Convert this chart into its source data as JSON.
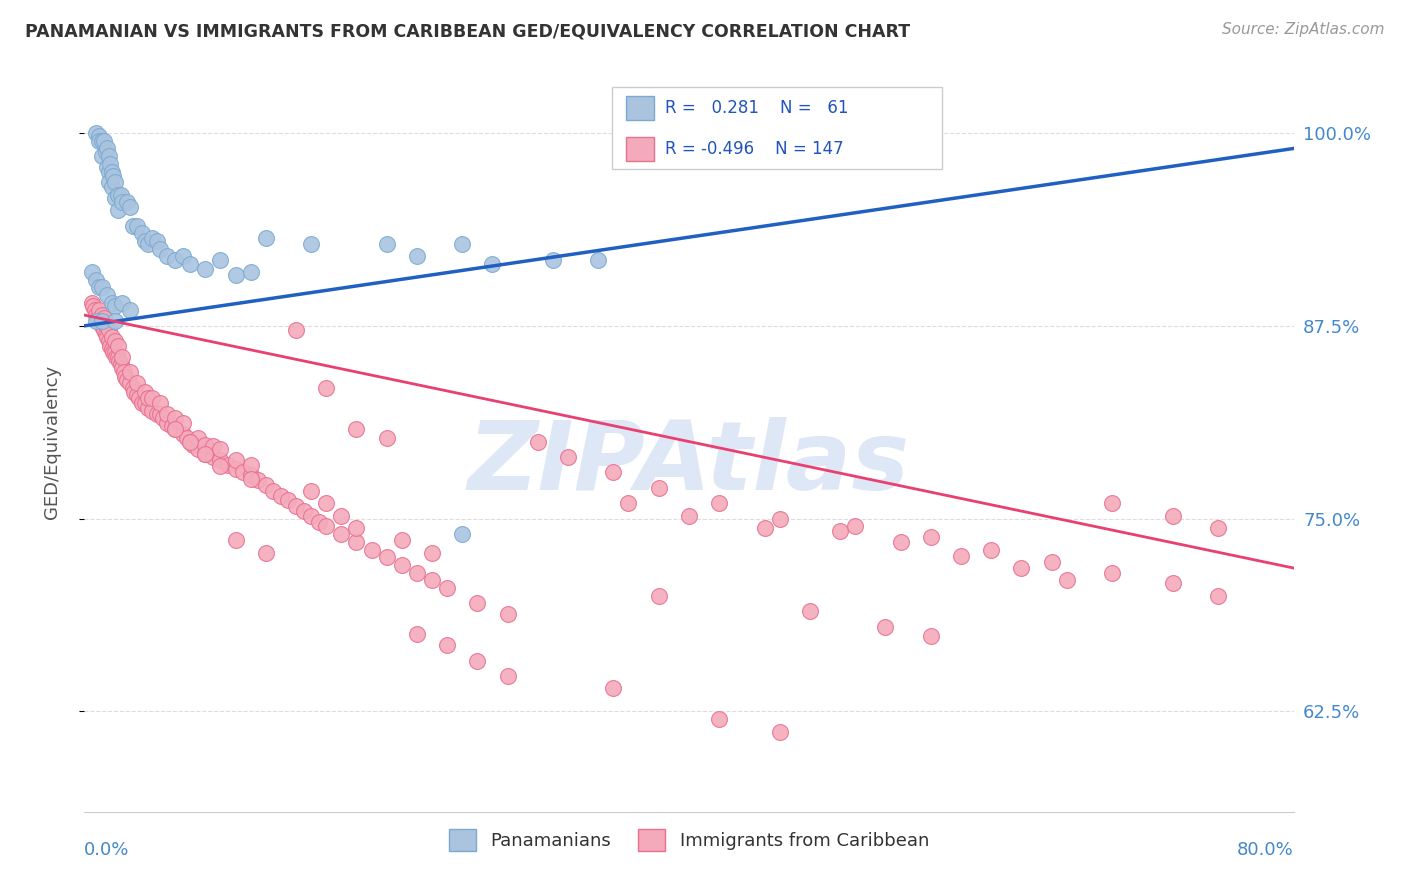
{
  "title": "PANAMANIAN VS IMMIGRANTS FROM CARIBBEAN GED/EQUIVALENCY CORRELATION CHART",
  "source": "Source: ZipAtlas.com",
  "ylabel": "GED/Equivalency",
  "ytick_labels": [
    "100.0%",
    "87.5%",
    "75.0%",
    "62.5%"
  ],
  "ytick_values": [
    1.0,
    0.875,
    0.75,
    0.625
  ],
  "legend_label_blue": "Panamanians",
  "legend_label_pink": "Immigrants from Caribbean",
  "blue_color": "#aac4e0",
  "pink_color": "#f4aabb",
  "blue_edge": "#7baad0",
  "pink_edge": "#e87090",
  "trend_blue_color": "#2060c0",
  "trend_pink_color": "#e84070",
  "watermark_color": "#c8d8f0",
  "background_color": "#ffffff",
  "grid_color": "#dddddd",
  "xlim": [
    0.0,
    0.8
  ],
  "ylim": [
    0.56,
    1.04
  ],
  "blue_scatter_x": [
    0.008,
    0.01,
    0.01,
    0.012,
    0.012,
    0.013,
    0.014,
    0.015,
    0.015,
    0.016,
    0.016,
    0.016,
    0.017,
    0.018,
    0.018,
    0.019,
    0.02,
    0.02,
    0.022,
    0.022,
    0.024,
    0.025,
    0.028,
    0.03,
    0.032,
    0.035,
    0.038,
    0.04,
    0.042,
    0.045,
    0.048,
    0.05,
    0.055,
    0.06,
    0.065,
    0.07,
    0.08,
    0.09,
    0.1,
    0.11,
    0.12,
    0.15,
    0.2,
    0.22,
    0.25,
    0.27,
    0.31,
    0.34,
    0.005,
    0.008,
    0.01,
    0.012,
    0.015,
    0.018,
    0.02,
    0.025,
    0.03,
    0.008,
    0.012,
    0.02,
    0.25
  ],
  "blue_scatter_y": [
    1.0,
    0.998,
    0.995,
    0.995,
    0.985,
    0.995,
    0.988,
    0.99,
    0.978,
    0.985,
    0.975,
    0.968,
    0.98,
    0.975,
    0.965,
    0.972,
    0.968,
    0.958,
    0.96,
    0.95,
    0.96,
    0.955,
    0.955,
    0.952,
    0.94,
    0.94,
    0.935,
    0.93,
    0.928,
    0.932,
    0.93,
    0.925,
    0.92,
    0.918,
    0.92,
    0.915,
    0.912,
    0.918,
    0.908,
    0.91,
    0.932,
    0.928,
    0.928,
    0.92,
    0.928,
    0.915,
    0.918,
    0.918,
    0.91,
    0.905,
    0.9,
    0.9,
    0.895,
    0.89,
    0.888,
    0.89,
    0.885,
    0.878,
    0.878,
    0.878,
    0.74
  ],
  "pink_scatter_x": [
    0.005,
    0.006,
    0.007,
    0.008,
    0.009,
    0.01,
    0.01,
    0.012,
    0.012,
    0.013,
    0.013,
    0.014,
    0.015,
    0.015,
    0.016,
    0.016,
    0.017,
    0.018,
    0.018,
    0.019,
    0.02,
    0.02,
    0.021,
    0.022,
    0.022,
    0.023,
    0.024,
    0.025,
    0.025,
    0.026,
    0.027,
    0.028,
    0.03,
    0.03,
    0.032,
    0.033,
    0.035,
    0.035,
    0.036,
    0.038,
    0.04,
    0.04,
    0.042,
    0.042,
    0.045,
    0.045,
    0.048,
    0.05,
    0.05,
    0.052,
    0.055,
    0.055,
    0.058,
    0.06,
    0.06,
    0.065,
    0.065,
    0.068,
    0.07,
    0.072,
    0.075,
    0.075,
    0.08,
    0.08,
    0.085,
    0.085,
    0.09,
    0.09,
    0.095,
    0.1,
    0.1,
    0.105,
    0.11,
    0.11,
    0.115,
    0.12,
    0.125,
    0.13,
    0.135,
    0.14,
    0.145,
    0.15,
    0.155,
    0.16,
    0.17,
    0.18,
    0.19,
    0.2,
    0.21,
    0.22,
    0.23,
    0.24,
    0.26,
    0.28,
    0.3,
    0.32,
    0.35,
    0.38,
    0.42,
    0.46,
    0.5,
    0.54,
    0.58,
    0.62,
    0.65,
    0.68,
    0.72,
    0.75,
    0.1,
    0.12,
    0.14,
    0.16,
    0.18,
    0.2,
    0.22,
    0.24,
    0.26,
    0.28,
    0.35,
    0.38,
    0.48,
    0.51,
    0.56,
    0.6,
    0.64,
    0.68,
    0.72,
    0.75,
    0.06,
    0.07,
    0.08,
    0.09,
    0.11,
    0.15,
    0.16,
    0.17,
    0.18,
    0.21,
    0.23,
    0.36,
    0.4,
    0.45,
    0.53,
    0.56,
    0.42,
    0.46
  ],
  "pink_scatter_y": [
    0.89,
    0.888,
    0.885,
    0.882,
    0.88,
    0.878,
    0.885,
    0.875,
    0.882,
    0.872,
    0.88,
    0.87,
    0.868,
    0.875,
    0.865,
    0.872,
    0.862,
    0.86,
    0.868,
    0.858,
    0.858,
    0.865,
    0.855,
    0.855,
    0.862,
    0.852,
    0.85,
    0.848,
    0.855,
    0.845,
    0.842,
    0.84,
    0.838,
    0.845,
    0.835,
    0.832,
    0.83,
    0.838,
    0.828,
    0.825,
    0.825,
    0.832,
    0.822,
    0.828,
    0.82,
    0.828,
    0.818,
    0.818,
    0.825,
    0.815,
    0.812,
    0.818,
    0.81,
    0.808,
    0.815,
    0.805,
    0.812,
    0.802,
    0.8,
    0.798,
    0.795,
    0.802,
    0.792,
    0.798,
    0.79,
    0.797,
    0.788,
    0.795,
    0.785,
    0.782,
    0.788,
    0.78,
    0.778,
    0.785,
    0.775,
    0.772,
    0.768,
    0.765,
    0.762,
    0.758,
    0.755,
    0.752,
    0.748,
    0.745,
    0.74,
    0.735,
    0.73,
    0.725,
    0.72,
    0.715,
    0.71,
    0.705,
    0.695,
    0.688,
    0.8,
    0.79,
    0.78,
    0.77,
    0.76,
    0.75,
    0.742,
    0.735,
    0.726,
    0.718,
    0.71,
    0.76,
    0.752,
    0.744,
    0.736,
    0.728,
    0.872,
    0.835,
    0.808,
    0.802,
    0.675,
    0.668,
    0.658,
    0.648,
    0.64,
    0.7,
    0.69,
    0.745,
    0.738,
    0.73,
    0.722,
    0.715,
    0.708,
    0.7,
    0.808,
    0.8,
    0.792,
    0.784,
    0.776,
    0.768,
    0.76,
    0.752,
    0.744,
    0.736,
    0.728,
    0.76,
    0.752,
    0.744,
    0.68,
    0.674,
    0.62,
    0.612
  ],
  "blue_trend_x0": 0.0,
  "blue_trend_x1": 0.8,
  "blue_trend_y0": 0.875,
  "blue_trend_y1": 0.99,
  "pink_trend_x0": 0.0,
  "pink_trend_x1": 0.8,
  "pink_trend_y0": 0.882,
  "pink_trend_y1": 0.718
}
